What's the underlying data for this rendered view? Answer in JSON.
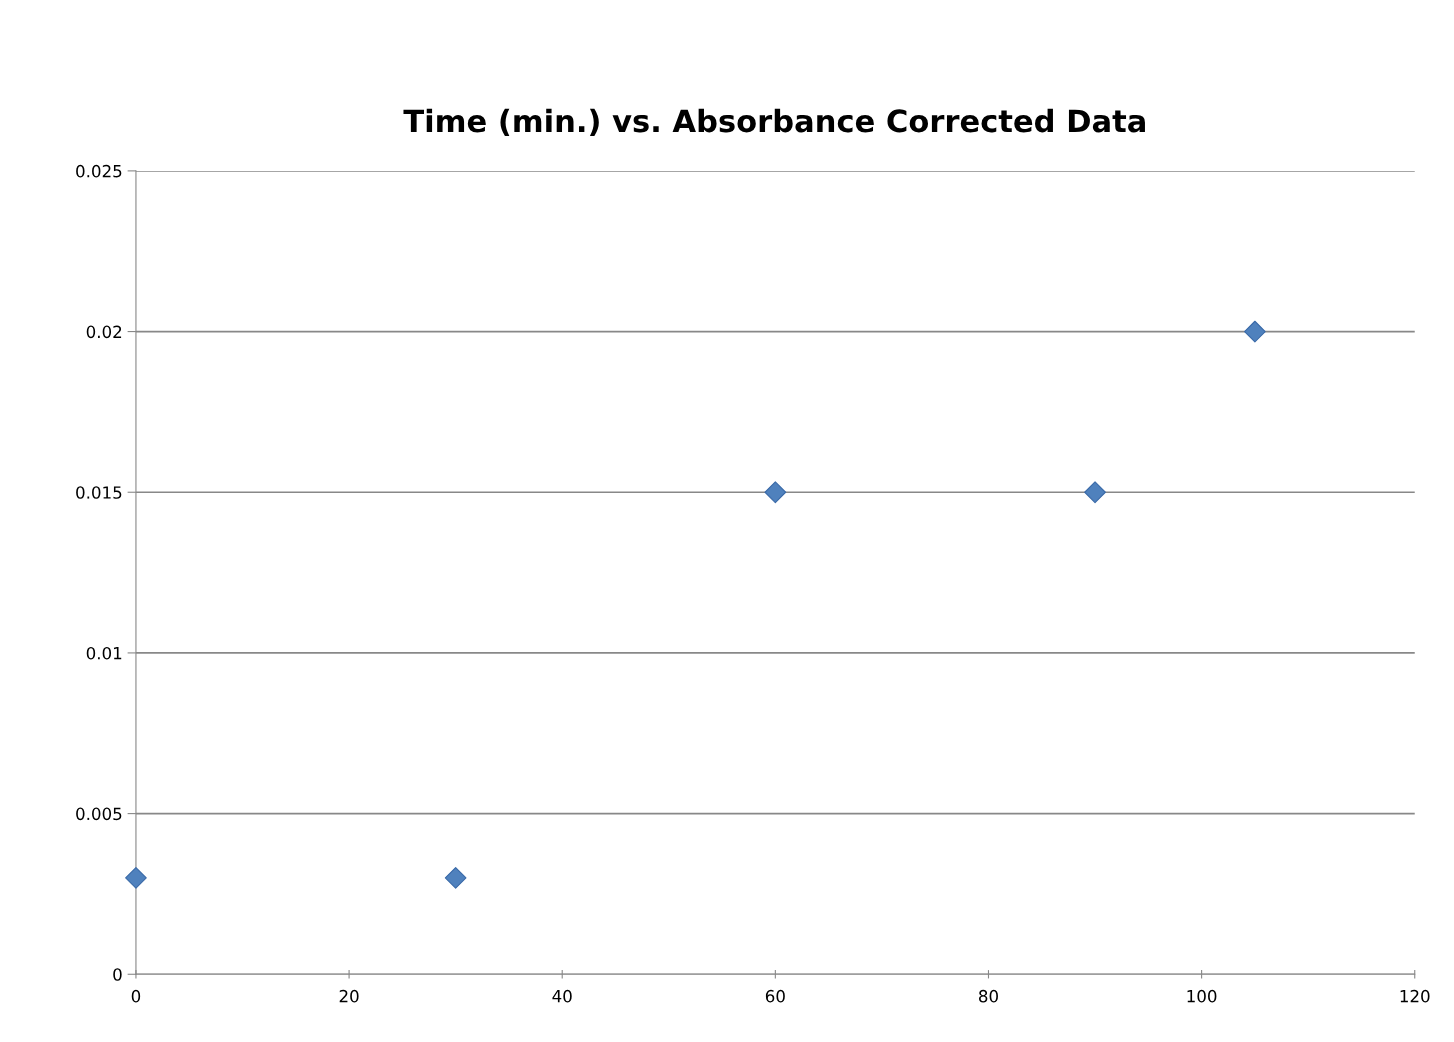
{
  "chart_data": {
    "type": "scatter",
    "title": "Time (min.) vs. Absorbance Corrected Data",
    "x": [
      0,
      30,
      60,
      90,
      105
    ],
    "series": [
      {
        "color": "#4f81bd",
        "values": [
          0.003,
          0.003,
          0.015,
          0.015,
          0.02
        ]
      }
    ],
    "xlim": [
      0,
      120
    ],
    "xticks": [
      0,
      20,
      40,
      60,
      80,
      100,
      120
    ],
    "ylim": [
      0,
      0.025
    ],
    "yticks": [
      0,
      0.005,
      0.01,
      0.015,
      0.02,
      0.025
    ],
    "grid": "y",
    "marker": "diamond",
    "legend": false
  }
}
